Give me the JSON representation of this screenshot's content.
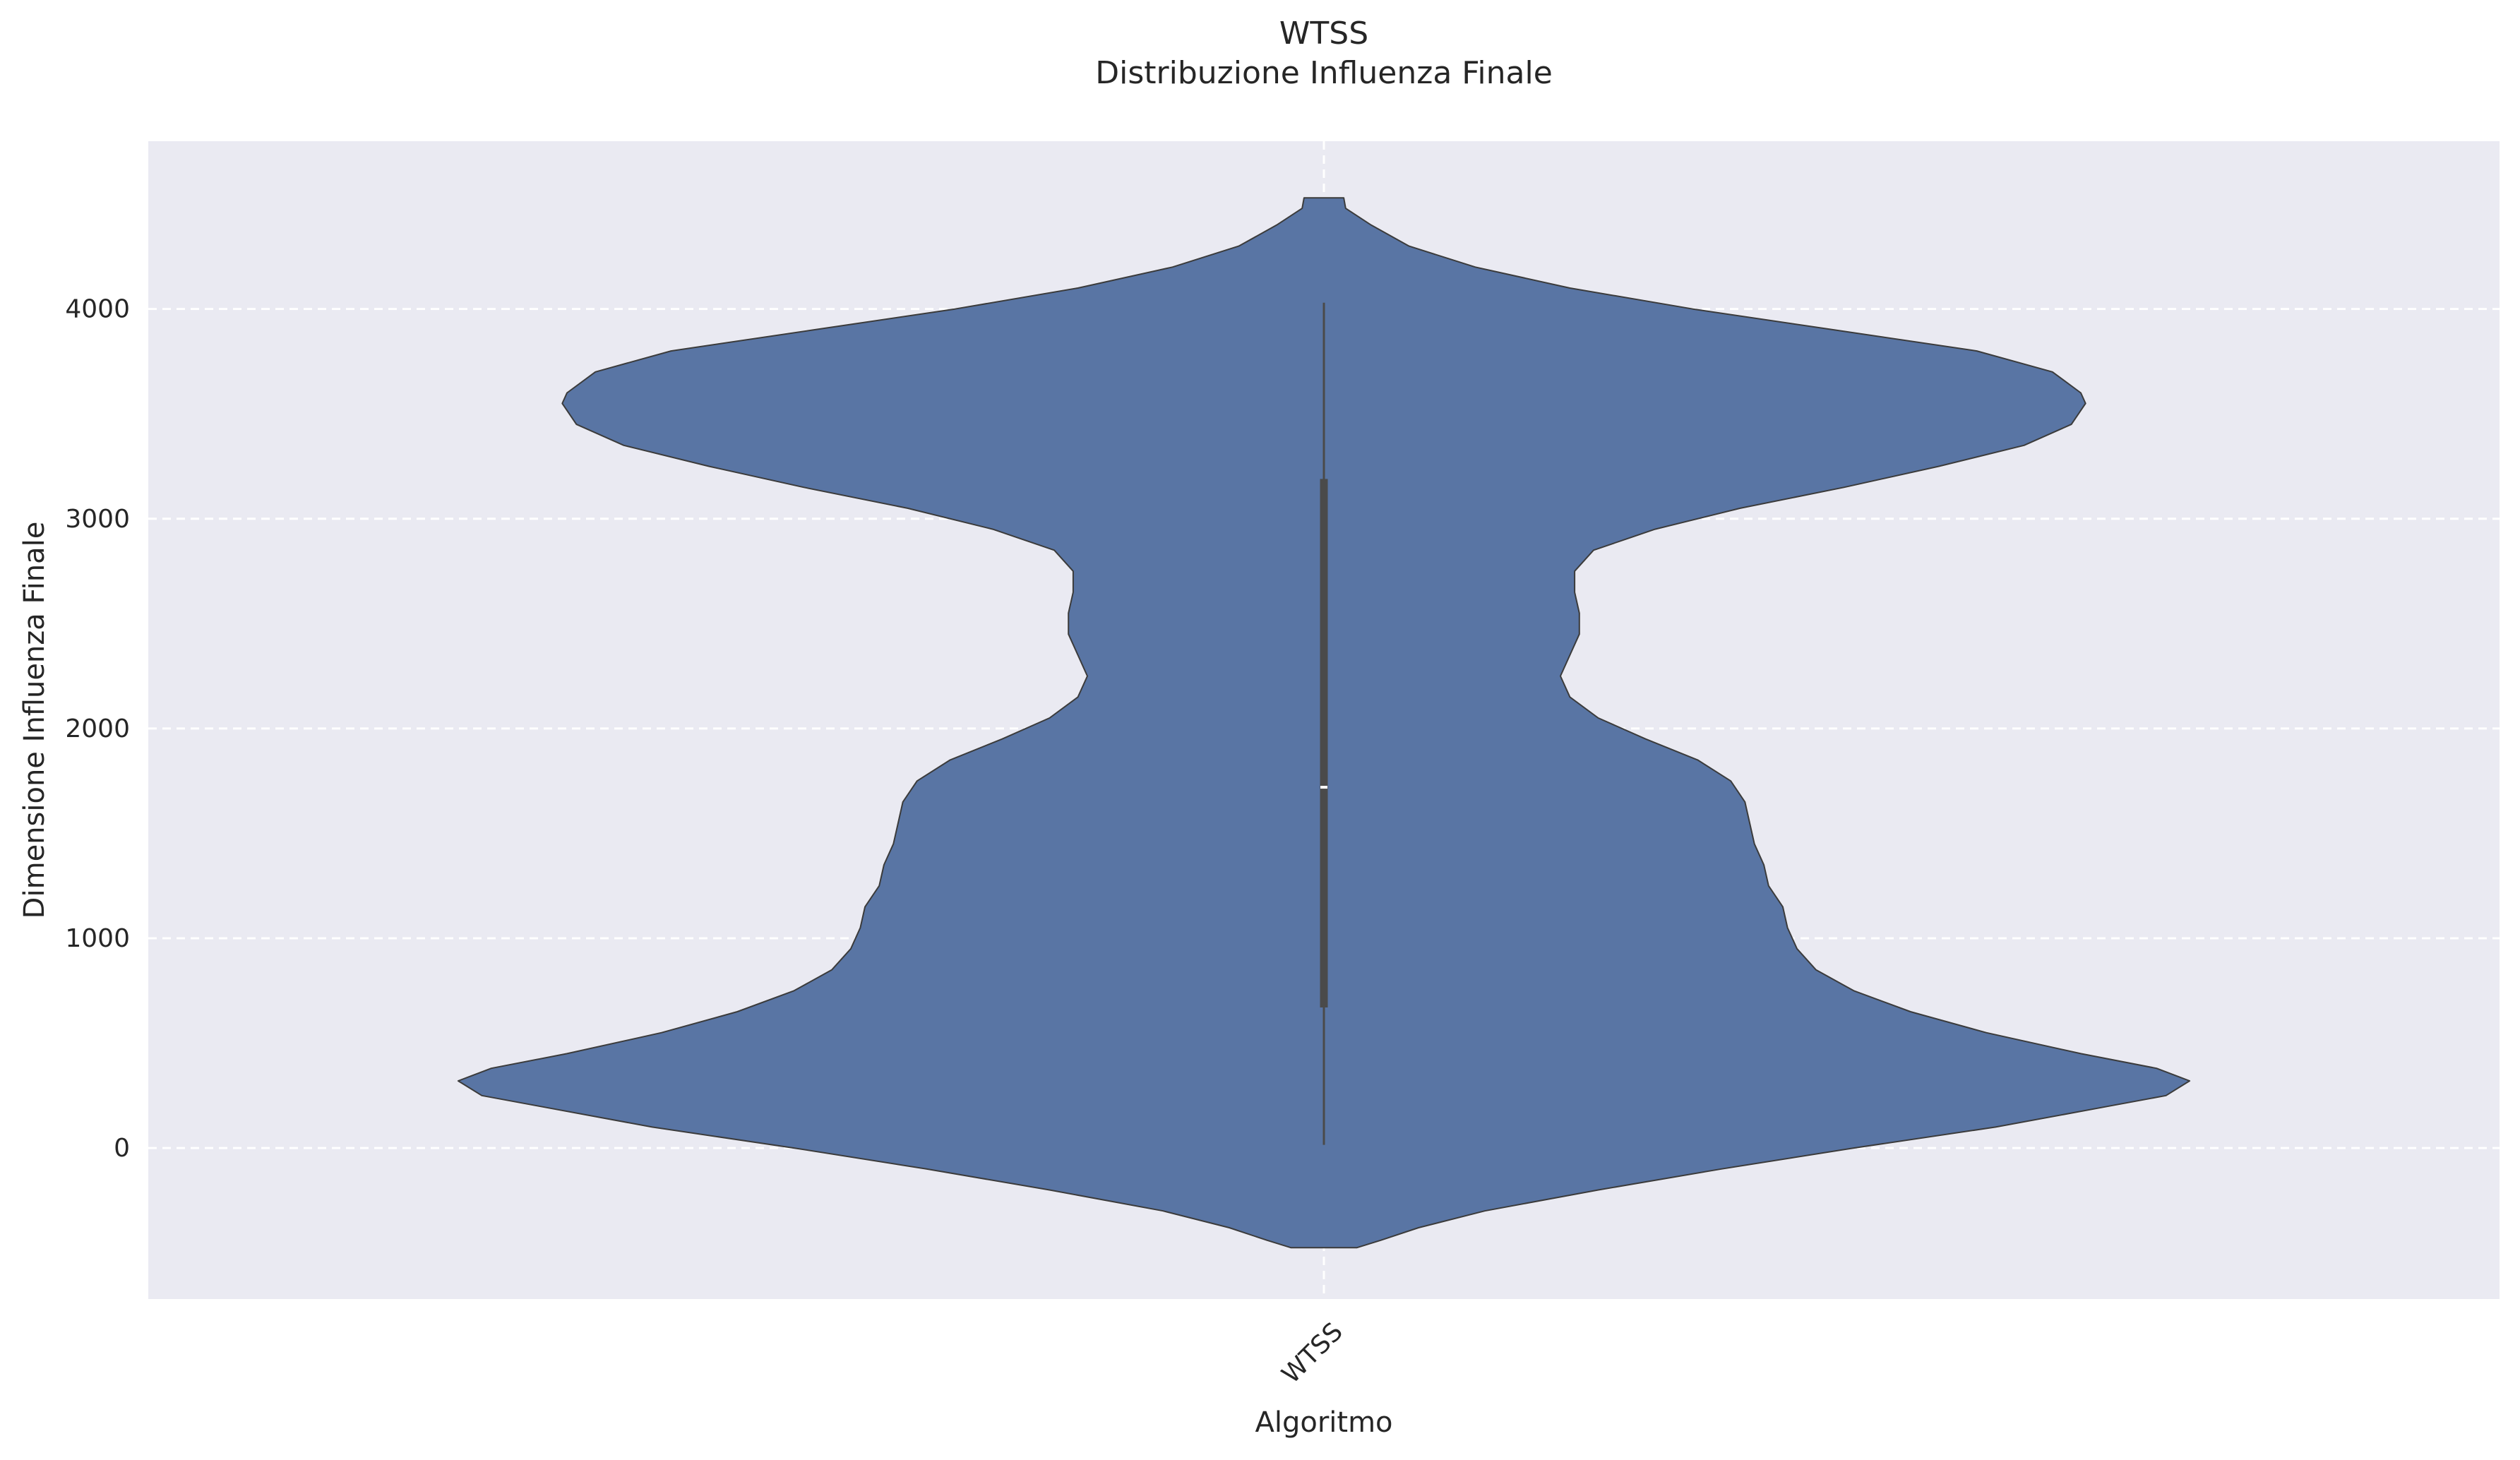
{
  "chart_data": {
    "type": "violin",
    "title": "WTSS",
    "subtitle": "Distribuzione Influenza Finale",
    "xlabel": "Algoritmo",
    "ylabel": "Dimensione Influenza Finale",
    "categories": [
      "WTSS"
    ],
    "ylim": [
      -720,
      4800
    ],
    "yticks": [
      0,
      1000,
      2000,
      3000,
      4000
    ],
    "grid": true,
    "xtick_rotation": 45,
    "colors": {
      "fill": "#5975A4",
      "edge": "#3b3b3b",
      "plot_bg": "#EAEAF2",
      "grid": "#ffffff",
      "inner_box": "#4a4a4a"
    },
    "violins": [
      {
        "category": "WTSS",
        "whisker": [
          15,
          4030
        ],
        "quartiles": [
          670,
          3190
        ],
        "median": 1720,
        "extent": [
          -475,
          4530
        ],
        "density_profile": [
          [
            -475,
            0.035
          ],
          [
            -440,
            0.06
          ],
          [
            -380,
            0.1
          ],
          [
            -300,
            0.17
          ],
          [
            -200,
            0.29
          ],
          [
            -100,
            0.42
          ],
          [
            0,
            0.56
          ],
          [
            100,
            0.71
          ],
          [
            200,
            0.83
          ],
          [
            250,
            0.89
          ],
          [
            320,
            0.915
          ],
          [
            380,
            0.88
          ],
          [
            450,
            0.8
          ],
          [
            550,
            0.7
          ],
          [
            650,
            0.62
          ],
          [
            750,
            0.56
          ],
          [
            850,
            0.52
          ],
          [
            950,
            0.5
          ],
          [
            1050,
            0.49
          ],
          [
            1150,
            0.485
          ],
          [
            1250,
            0.47
          ],
          [
            1350,
            0.465
          ],
          [
            1450,
            0.455
          ],
          [
            1550,
            0.45
          ],
          [
            1650,
            0.445
          ],
          [
            1750,
            0.43
          ],
          [
            1850,
            0.395
          ],
          [
            1950,
            0.34
          ],
          [
            2050,
            0.29
          ],
          [
            2150,
            0.26
          ],
          [
            2250,
            0.25
          ],
          [
            2350,
            0.26
          ],
          [
            2450,
            0.27
          ],
          [
            2550,
            0.27
          ],
          [
            2650,
            0.265
          ],
          [
            2750,
            0.265
          ],
          [
            2850,
            0.285
          ],
          [
            2950,
            0.35
          ],
          [
            3050,
            0.44
          ],
          [
            3150,
            0.55
          ],
          [
            3250,
            0.65
          ],
          [
            3350,
            0.74
          ],
          [
            3450,
            0.79
          ],
          [
            3550,
            0.805
          ],
          [
            3600,
            0.8
          ],
          [
            3700,
            0.77
          ],
          [
            3800,
            0.69
          ],
          [
            3900,
            0.54
          ],
          [
            4000,
            0.39
          ],
          [
            4100,
            0.26
          ],
          [
            4200,
            0.16
          ],
          [
            4300,
            0.09
          ],
          [
            4400,
            0.05
          ],
          [
            4480,
            0.023
          ],
          [
            4530,
            0.021
          ]
        ]
      }
    ]
  }
}
